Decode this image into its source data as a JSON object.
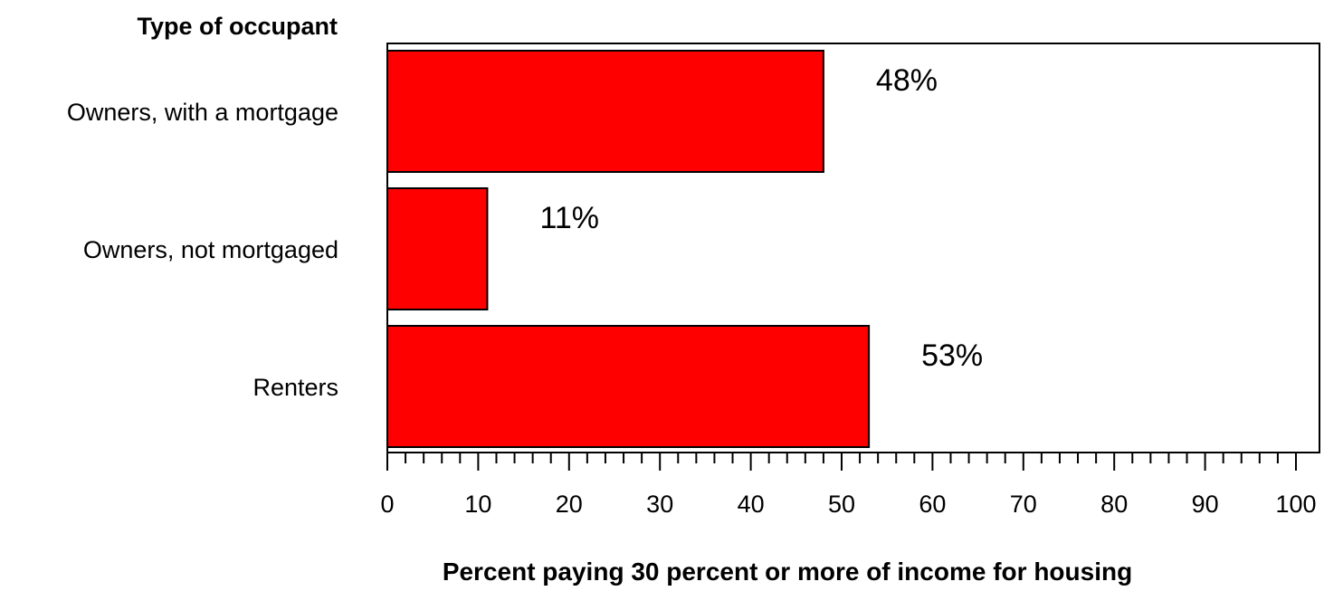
{
  "chart_data": {
    "type": "bar",
    "orientation": "horizontal",
    "y_axis_title": "Type of occupant",
    "xlabel": "Percent paying 30 percent or more of income for housing",
    "categories": [
      "Owners, with a mortgage",
      "Owners, not mortgaged",
      "Renters"
    ],
    "values": [
      48,
      11,
      53
    ],
    "data_labels": [
      "48%",
      "11%",
      "53%"
    ],
    "xlim": [
      0,
      100
    ],
    "x_ticks": [
      0,
      10,
      20,
      30,
      40,
      50,
      60,
      70,
      80,
      90,
      100
    ],
    "x_tick_labels": [
      "0",
      "10",
      "20",
      "30",
      "40",
      "50",
      "60",
      "70",
      "80",
      "90",
      "100"
    ],
    "grid": false,
    "bar_color": "#ff0000"
  }
}
